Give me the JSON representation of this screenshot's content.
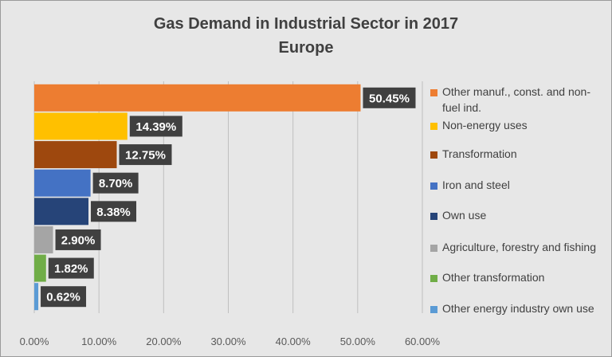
{
  "chart_data": {
    "type": "bar",
    "orientation": "horizontal",
    "title": "Gas Demand in Industrial Sector in 2017",
    "subtitle": "Europe",
    "categories": [
      "Other manuf., const. and non-fuel ind.",
      "Non-energy uses",
      "Transformation",
      "Iron and steel",
      "Own use",
      "Agriculture, forestry and fishing",
      "Other transformation",
      "Other energy industry own use"
    ],
    "values": [
      50.45,
      14.39,
      12.75,
      8.7,
      8.38,
      2.9,
      1.82,
      0.62
    ],
    "data_labels": [
      "50.45%",
      "14.39%",
      "12.75%",
      "8.70%",
      "8.38%",
      "2.90%",
      "1.82%",
      "0.62%"
    ],
    "colors": [
      "#ed7d31",
      "#ffc000",
      "#9e480e",
      "#4472c4",
      "#264478",
      "#a5a5a5",
      "#70ad47",
      "#5b9bd5"
    ],
    "xlim": [
      0,
      60
    ],
    "xticks": [
      "0.00%",
      "10.00%",
      "20.00%",
      "30.00%",
      "40.00%",
      "50.00%",
      "60.00%"
    ],
    "xticks_values": [
      0,
      10,
      20,
      30,
      40,
      50,
      60
    ],
    "xlabel": "",
    "ylabel": "",
    "grid": "vertical gridlines",
    "legend_position": "right"
  },
  "style": {
    "background": "#e7e7e7",
    "gridline": "#bfbfbf",
    "label_box": "#404040"
  }
}
